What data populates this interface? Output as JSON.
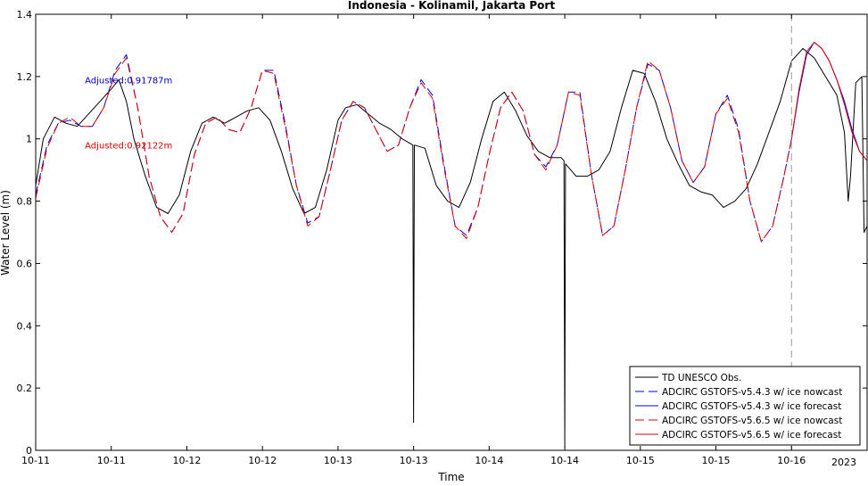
{
  "chart_data": {
    "type": "line",
    "title": "Indonesia - Kolinamil, Jakarta Port",
    "xlabel": "Time",
    "ylabel": "Water Level (m)",
    "year_label": "2023",
    "xlim": [
      0,
      11
    ],
    "ylim": [
      0,
      1.4
    ],
    "x_ticks": [
      0,
      1,
      2,
      3,
      4,
      5,
      6,
      7,
      8,
      9,
      10
    ],
    "x_tick_labels": [
      "10-11",
      "10-11",
      "10-12",
      "10-12",
      "10-13",
      "10-13",
      "10-14",
      "10-14",
      "10-15",
      "10-15",
      "10-16"
    ],
    "y_ticks": [
      0,
      0.2,
      0.4,
      0.6,
      0.8,
      1,
      1.2,
      1.4
    ],
    "y_tick_labels": [
      "0",
      "0.2",
      "0.4",
      "0.6",
      "0.8",
      "1",
      "1.2",
      "1.4"
    ],
    "forecast_start_x": 10,
    "grid": false,
    "legend_position": "bottom-right",
    "annotations": [
      {
        "text": "Adjusted:0.91787m",
        "x": 0.65,
        "y": 1.19,
        "color": "#0000cc"
      },
      {
        "text": "Adjusted:0.92122m",
        "x": 0.65,
        "y": 0.98,
        "color": "#dd0000"
      }
    ],
    "series": [
      {
        "name": "TD UNESCO Obs.",
        "color": "#000000",
        "dash": "solid",
        "x": [
          0,
          0.1,
          0.25,
          0.4,
          0.55,
          0.7,
          0.85,
          1.0,
          1.1,
          1.2,
          1.3,
          1.45,
          1.6,
          1.75,
          1.9,
          2.05,
          2.2,
          2.35,
          2.5,
          2.65,
          2.8,
          2.95,
          3.1,
          3.25,
          3.4,
          3.55,
          3.7,
          3.85,
          4.0,
          4.1,
          4.25,
          4.4,
          4.55,
          4.7,
          4.85,
          4.99,
          5.0,
          5.01,
          5.15,
          5.3,
          5.45,
          5.6,
          5.75,
          5.9,
          6.05,
          6.2,
          6.35,
          6.5,
          6.65,
          6.8,
          6.95,
          6.99,
          7.0,
          7.01,
          7.15,
          7.3,
          7.45,
          7.6,
          7.75,
          7.9,
          8.05,
          8.2,
          8.35,
          8.5,
          8.65,
          8.8,
          8.95,
          9.1,
          9.25,
          9.4,
          9.55,
          9.7,
          9.85,
          10.0,
          10.15,
          10.3,
          10.45,
          10.6,
          10.7,
          10.75,
          10.78,
          10.85,
          10.93,
          10.96,
          11.0
        ],
        "y": [
          0.85,
          1.0,
          1.07,
          1.05,
          1.04,
          1.08,
          1.12,
          1.16,
          1.19,
          1.12,
          1.0,
          0.88,
          0.78,
          0.76,
          0.82,
          0.96,
          1.05,
          1.07,
          1.05,
          1.07,
          1.09,
          1.1,
          1.06,
          0.96,
          0.84,
          0.76,
          0.78,
          0.9,
          1.06,
          1.1,
          1.11,
          1.08,
          1.05,
          1.03,
          1.0,
          0.98,
          0.09,
          0.98,
          0.97,
          0.85,
          0.8,
          0.78,
          0.86,
          1.0,
          1.12,
          1.15,
          1.09,
          1.01,
          0.96,
          0.94,
          0.94,
          0.93,
          0.01,
          0.92,
          0.88,
          0.88,
          0.9,
          0.96,
          1.1,
          1.22,
          1.21,
          1.12,
          1.0,
          0.92,
          0.85,
          0.83,
          0.82,
          0.78,
          0.8,
          0.84,
          0.92,
          1.02,
          1.12,
          1.25,
          1.29,
          1.26,
          1.2,
          1.14,
          1.02,
          0.8,
          0.88,
          1.18,
          1.2,
          0.7,
          0.72
        ]
      },
      {
        "name": "ADCIRC GSTOFS-v5.4.3 w/ ice nowcast",
        "color": "#0000dd",
        "dash": "dashed",
        "x": [
          0,
          0.15,
          0.3,
          0.45,
          0.6,
          0.75,
          0.9,
          1.05,
          1.2,
          1.35,
          1.5,
          1.65,
          1.8,
          1.95,
          2.1,
          2.25,
          2.4,
          2.55,
          2.7,
          2.85,
          3.0,
          3.15,
          3.3,
          3.45,
          3.6,
          3.75,
          3.9,
          4.05,
          4.2,
          4.35,
          4.5,
          4.65,
          4.8,
          4.95,
          5.1,
          5.25,
          5.4,
          5.55,
          5.7,
          5.85,
          6.0,
          6.15,
          6.3,
          6.45,
          6.6,
          6.75,
          6.9,
          7.05,
          7.2,
          7.35,
          7.5,
          7.65,
          7.8,
          7.95,
          8.1,
          8.25,
          8.4,
          8.55,
          8.7,
          8.85,
          9.0,
          9.15,
          9.3,
          9.45,
          9.6,
          9.75,
          9.9,
          10.0
        ],
        "y": [
          0.82,
          0.98,
          1.05,
          1.06,
          1.04,
          1.04,
          1.1,
          1.22,
          1.27,
          1.1,
          0.88,
          0.75,
          0.7,
          0.76,
          0.95,
          1.05,
          1.07,
          1.03,
          1.02,
          1.1,
          1.22,
          1.22,
          1.05,
          0.85,
          0.73,
          0.75,
          0.9,
          1.06,
          1.12,
          1.1,
          1.03,
          0.96,
          0.98,
          1.1,
          1.19,
          1.14,
          0.92,
          0.72,
          0.69,
          0.78,
          0.95,
          1.1,
          1.15,
          1.09,
          0.95,
          0.91,
          0.98,
          1.15,
          1.15,
          0.89,
          0.69,
          0.72,
          0.9,
          1.1,
          1.24,
          1.22,
          1.1,
          0.93,
          0.86,
          0.91,
          1.08,
          1.14,
          1.03,
          0.8,
          0.67,
          0.72,
          0.88,
          1.0
        ]
      },
      {
        "name": "ADCIRC GSTOFS-v5.4.3 w/ ice forecast",
        "color": "#0000dd",
        "dash": "solid",
        "x": [
          10.0,
          10.1,
          10.2,
          10.3,
          10.4,
          10.5,
          10.6,
          10.7,
          10.8,
          10.9,
          11.0
        ],
        "y": [
          1.0,
          1.15,
          1.27,
          1.31,
          1.29,
          1.25,
          1.19,
          1.12,
          1.03,
          0.96,
          0.93
        ]
      },
      {
        "name": "ADCIRC GSTOFS-v5.6.5 w/ ice nowcast",
        "color": "#dd0000",
        "dash": "dashed",
        "x": [
          0,
          0.15,
          0.3,
          0.45,
          0.6,
          0.75,
          0.9,
          1.05,
          1.2,
          1.35,
          1.5,
          1.65,
          1.8,
          1.95,
          2.1,
          2.25,
          2.4,
          2.55,
          2.7,
          2.85,
          3.0,
          3.15,
          3.3,
          3.45,
          3.6,
          3.75,
          3.9,
          4.05,
          4.2,
          4.35,
          4.5,
          4.65,
          4.8,
          4.95,
          5.1,
          5.25,
          5.4,
          5.55,
          5.7,
          5.85,
          6.0,
          6.15,
          6.3,
          6.45,
          6.6,
          6.75,
          6.9,
          7.05,
          7.2,
          7.35,
          7.5,
          7.65,
          7.8,
          7.95,
          8.1,
          8.25,
          8.4,
          8.55,
          8.7,
          8.85,
          9.0,
          9.15,
          9.3,
          9.45,
          9.6,
          9.75,
          9.9,
          10.0
        ],
        "y": [
          0.81,
          0.97,
          1.05,
          1.07,
          1.04,
          1.04,
          1.1,
          1.21,
          1.26,
          1.1,
          0.88,
          0.75,
          0.7,
          0.76,
          0.95,
          1.05,
          1.07,
          1.03,
          1.02,
          1.1,
          1.22,
          1.21,
          1.04,
          0.85,
          0.72,
          0.75,
          0.9,
          1.06,
          1.12,
          1.1,
          1.03,
          0.96,
          0.98,
          1.1,
          1.18,
          1.13,
          0.91,
          0.72,
          0.68,
          0.78,
          0.95,
          1.1,
          1.15,
          1.09,
          0.95,
          0.9,
          0.98,
          1.15,
          1.14,
          0.89,
          0.69,
          0.72,
          0.9,
          1.1,
          1.25,
          1.22,
          1.1,
          0.93,
          0.86,
          0.91,
          1.08,
          1.13,
          1.02,
          0.8,
          0.67,
          0.72,
          0.88,
          1.0
        ]
      },
      {
        "name": "ADCIRC GSTOFS-v5.6.5 w/ ice forecast",
        "color": "#dd0000",
        "dash": "solid",
        "x": [
          10.0,
          10.1,
          10.2,
          10.3,
          10.4,
          10.5,
          10.6,
          10.7,
          10.8,
          10.9,
          11.0
        ],
        "y": [
          1.0,
          1.16,
          1.28,
          1.31,
          1.29,
          1.25,
          1.19,
          1.11,
          1.02,
          0.96,
          0.93
        ]
      }
    ]
  }
}
